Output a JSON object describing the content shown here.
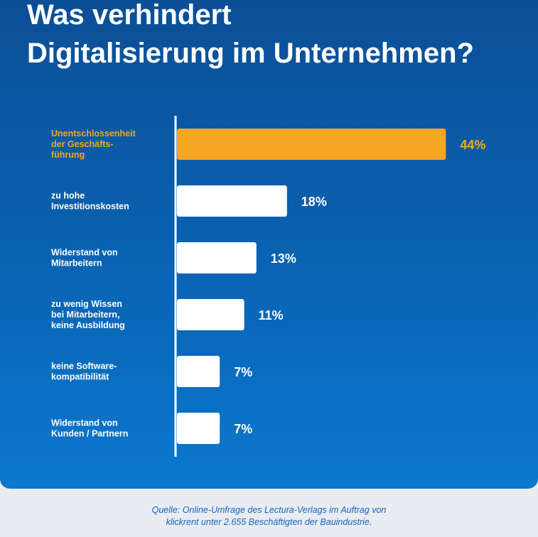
{
  "title_lines": [
    "Was verhindert",
    "Digitalisierung im Unternehmen?"
  ],
  "source_lines": [
    "Quelle: Online-Umfrage des Lectura-Verlags im Auftrag von",
    "klickrent unter 2.655 Beschäftigten der Bauindustrie."
  ],
  "colors": {
    "highlight": "#f5a623",
    "bar": "#ffffff",
    "label": "#ffffff",
    "source": "#1565c0"
  },
  "chart_data": {
    "type": "bar",
    "orientation": "horizontal",
    "categories": [
      [
        "Unentschlossenheit",
        "der Geschäfts-",
        "führung"
      ],
      [
        "zu hohe",
        "Investitionskosten"
      ],
      [
        "Widerstand von",
        "Mitarbeitern"
      ],
      [
        "zu wenig Wissen",
        "bei Mitarbeitern,",
        "keine Ausbildung"
      ],
      [
        "keine Software-",
        "kompatibilität"
      ],
      [
        "Widerstand von",
        "Kunden / Partnern"
      ]
    ],
    "values": [
      44,
      18,
      13,
      11,
      7,
      7
    ],
    "value_labels": [
      "44%",
      "18%",
      "13%",
      "11%",
      "7%",
      "7%"
    ],
    "highlighted_index": 0,
    "grid": false
  }
}
